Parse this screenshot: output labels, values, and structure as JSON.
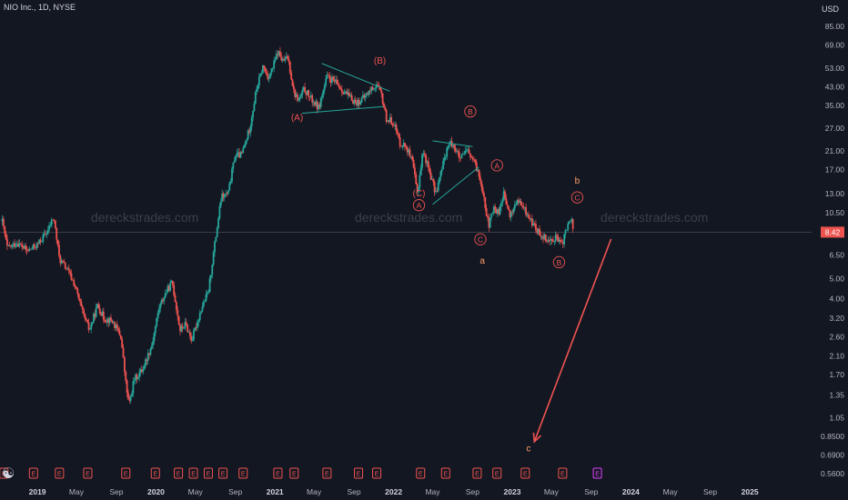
{
  "header": {
    "title": "NIO Inc., 1D, NYSE",
    "unit": "USD"
  },
  "watermark": "dereckstrades.com",
  "price_badge": "8.42",
  "colors": {
    "bg": "#131722",
    "up": "#26a69a",
    "down": "#ef5350",
    "grid": "#2a2e39",
    "axis_text": "#b2b5be",
    "annotation_red": "#ef5350",
    "annotation_orange": "#ff9f6b",
    "trendline": "#26a69a",
    "earnings": "#ef5350",
    "dividend": "#26a69a",
    "future_event": "#e040fb"
  },
  "chart_data": {
    "type": "candlestick",
    "title": "NIO Inc., 1D, NYSE",
    "scale": "log",
    "y_ticks": [
      "85.00",
      "69.00",
      "53.00",
      "43.00",
      "35.00",
      "27.00",
      "21.00",
      "17.00",
      "13.00",
      "10.50",
      "6.50",
      "5.00",
      "4.00",
      "3.20",
      "2.60",
      "2.10",
      "1.70",
      "1.35",
      "1.05",
      "0.8500",
      "0.6900",
      "0.5600"
    ],
    "x_ticks": [
      "2019",
      "May",
      "Sep",
      "2020",
      "May",
      "Sep",
      "2021",
      "May",
      "Sep",
      "2022",
      "May",
      "Sep",
      "2023",
      "May",
      "Sep",
      "2024",
      "May",
      "Sep",
      "2025"
    ],
    "last_price": 8.42,
    "price_path": [
      {
        "date": "2018-09-15",
        "price": 9.5
      },
      {
        "date": "2018-10-01",
        "price": 7.0
      },
      {
        "date": "2018-11-01",
        "price": 7.5
      },
      {
        "date": "2018-12-01",
        "price": 6.8
      },
      {
        "date": "2019-01-01",
        "price": 7.3
      },
      {
        "date": "2019-02-01",
        "price": 8.5
      },
      {
        "date": "2019-02-20",
        "price": 10.0
      },
      {
        "date": "2019-03-10",
        "price": 6.2
      },
      {
        "date": "2019-04-01",
        "price": 5.6
      },
      {
        "date": "2019-04-25",
        "price": 4.7
      },
      {
        "date": "2019-05-20",
        "price": 3.4
      },
      {
        "date": "2019-06-10",
        "price": 2.8
      },
      {
        "date": "2019-07-05",
        "price": 3.7
      },
      {
        "date": "2019-07-25",
        "price": 3.2
      },
      {
        "date": "2019-08-20",
        "price": 3.1
      },
      {
        "date": "2019-09-15",
        "price": 2.6
      },
      {
        "date": "2019-10-01",
        "price": 1.5
      },
      {
        "date": "2019-10-10",
        "price": 1.2
      },
      {
        "date": "2019-10-25",
        "price": 1.6
      },
      {
        "date": "2019-11-20",
        "price": 1.8
      },
      {
        "date": "2019-12-20",
        "price": 2.4
      },
      {
        "date": "2020-01-10",
        "price": 3.6
      },
      {
        "date": "2020-02-01",
        "price": 4.3
      },
      {
        "date": "2020-02-20",
        "price": 4.8
      },
      {
        "date": "2020-03-15",
        "price": 2.8
      },
      {
        "date": "2020-04-01",
        "price": 3.0
      },
      {
        "date": "2020-04-20",
        "price": 2.5
      },
      {
        "date": "2020-05-20",
        "price": 3.6
      },
      {
        "date": "2020-06-10",
        "price": 4.3
      },
      {
        "date": "2020-06-25",
        "price": 6.5
      },
      {
        "date": "2020-07-20",
        "price": 12.5
      },
      {
        "date": "2020-08-10",
        "price": 13.0
      },
      {
        "date": "2020-08-31",
        "price": 20.0
      },
      {
        "date": "2020-09-20",
        "price": 20.0
      },
      {
        "date": "2020-10-15",
        "price": 27.0
      },
      {
        "date": "2020-11-05",
        "price": 42.0
      },
      {
        "date": "2020-11-25",
        "price": 54.0
      },
      {
        "date": "2020-12-10",
        "price": 48.0
      },
      {
        "date": "2020-12-25",
        "price": 53.0
      },
      {
        "date": "2021-01-10",
        "price": 64.0
      },
      {
        "date": "2021-01-25",
        "price": 57.0
      },
      {
        "date": "2021-02-10",
        "price": 60.0
      },
      {
        "date": "2021-03-01",
        "price": 40.0
      },
      {
        "date": "2021-03-15",
        "price": 37.0
      },
      {
        "date": "2021-04-01",
        "price": 42.0
      },
      {
        "date": "2021-04-20",
        "price": 38.0
      },
      {
        "date": "2021-05-15",
        "price": 34.0
      },
      {
        "date": "2021-06-10",
        "price": 48.0
      },
      {
        "date": "2021-07-01",
        "price": 46.0
      },
      {
        "date": "2021-07-25",
        "price": 42.0
      },
      {
        "date": "2021-08-20",
        "price": 38.0
      },
      {
        "date": "2021-09-10",
        "price": 36.0
      },
      {
        "date": "2021-10-01",
        "price": 38.0
      },
      {
        "date": "2021-10-25",
        "price": 42.0
      },
      {
        "date": "2021-11-10",
        "price": 44.0
      },
      {
        "date": "2021-11-25",
        "price": 39.0
      },
      {
        "date": "2021-12-10",
        "price": 30.0
      },
      {
        "date": "2022-01-01",
        "price": 29.0
      },
      {
        "date": "2022-01-20",
        "price": 23.0
      },
      {
        "date": "2022-02-10",
        "price": 22.0
      },
      {
        "date": "2022-03-01",
        "price": 18.0
      },
      {
        "date": "2022-03-15",
        "price": 13.0
      },
      {
        "date": "2022-04-01",
        "price": 21.0
      },
      {
        "date": "2022-04-20",
        "price": 17.0
      },
      {
        "date": "2022-05-10",
        "price": 13.0
      },
      {
        "date": "2022-05-25",
        "price": 16.0
      },
      {
        "date": "2022-06-15",
        "price": 22.0
      },
      {
        "date": "2022-07-01",
        "price": 23.0
      },
      {
        "date": "2022-07-25",
        "price": 19.0
      },
      {
        "date": "2022-08-15",
        "price": 21.0
      },
      {
        "date": "2022-09-01",
        "price": 19.0
      },
      {
        "date": "2022-09-15",
        "price": 17.0
      },
      {
        "date": "2022-10-01",
        "price": 14.0
      },
      {
        "date": "2022-10-20",
        "price": 9.0
      },
      {
        "date": "2022-11-05",
        "price": 11.0
      },
      {
        "date": "2022-11-20",
        "price": 10.5
      },
      {
        "date": "2022-12-05",
        "price": 13.0
      },
      {
        "date": "2022-12-25",
        "price": 10.0
      },
      {
        "date": "2023-01-15",
        "price": 12.0
      },
      {
        "date": "2023-02-05",
        "price": 11.0
      },
      {
        "date": "2023-03-01",
        "price": 9.5
      },
      {
        "date": "2023-03-20",
        "price": 8.5
      },
      {
        "date": "2023-04-10",
        "price": 8.0
      },
      {
        "date": "2023-04-25",
        "price": 7.6
      },
      {
        "date": "2023-05-15",
        "price": 8.0
      },
      {
        "date": "2023-06-01",
        "price": 7.2
      },
      {
        "date": "2023-06-15",
        "price": 8.5
      },
      {
        "date": "2023-06-30",
        "price": 9.9
      },
      {
        "date": "2023-07-10",
        "price": 8.42
      }
    ],
    "elliott_labels": [
      {
        "text": "(A)",
        "date": "2021-03-10",
        "price": 29.5,
        "color": "red"
      },
      {
        "text": "(B)",
        "date": "2021-11-20",
        "price": 56,
        "color": "red"
      },
      {
        "text": "(C)",
        "date": "2022-03-20",
        "price": 12.6,
        "color": "red"
      },
      {
        "text": "A",
        "date": "2022-03-20",
        "price": 11.0,
        "color": "red",
        "circled": true
      },
      {
        "text": "B",
        "date": "2022-08-25",
        "price": 31.5,
        "color": "red",
        "circled": true
      },
      {
        "text": "A",
        "date": "2022-11-15",
        "price": 17.2,
        "color": "red",
        "circled": true
      },
      {
        "text": "C",
        "date": "2022-09-25",
        "price": 7.5,
        "color": "red",
        "circled": true
      },
      {
        "text": "a",
        "date": "2022-10-01",
        "price": 5.9,
        "color": "orange"
      },
      {
        "text": "b",
        "date": "2023-07-20",
        "price": 14.5,
        "color": "orange"
      },
      {
        "text": "C",
        "date": "2023-07-20",
        "price": 12.0,
        "color": "red",
        "circled": true
      },
      {
        "text": "B",
        "date": "2023-05-25",
        "price": 5.8,
        "color": "red",
        "circled": true
      },
      {
        "text": "c",
        "date": "2023-02-20",
        "price": 0.72,
        "color": "orange"
      }
    ],
    "trendlines": [
      {
        "from": {
          "date": "2021-03-25",
          "price": 32.0
        },
        "to": {
          "date": "2021-12-01",
          "price": 34.5
        }
      },
      {
        "from": {
          "date": "2021-05-25",
          "price": 56.0
        },
        "to": {
          "date": "2021-12-20",
          "price": 41.0
        }
      },
      {
        "from": {
          "date": "2022-05-01",
          "price": 23.5
        },
        "to": {
          "date": "2022-09-01",
          "price": 22.0
        }
      },
      {
        "from": {
          "date": "2022-05-01",
          "price": 11.5
        },
        "to": {
          "date": "2022-09-20",
          "price": 17.5
        }
      }
    ],
    "projection_arrow": {
      "from": {
        "date": "2023-11-01",
        "price": 7.8
      },
      "to": {
        "date": "2023-03-10",
        "price": 0.8
      }
    },
    "events": [
      {
        "date": "2018-09-20",
        "type": "E"
      },
      {
        "date": "2018-12-20",
        "type": "E"
      },
      {
        "date": "2019-03-10",
        "type": "E"
      },
      {
        "date": "2019-06-05",
        "type": "E"
      },
      {
        "date": "2019-09-30",
        "type": "E"
      },
      {
        "date": "2019-12-30",
        "type": "E"
      },
      {
        "date": "2020-03-10",
        "type": "E"
      },
      {
        "date": "2020-04-25",
        "type": "E"
      },
      {
        "date": "2020-06-10",
        "type": "E"
      },
      {
        "date": "2020-07-25",
        "type": "E"
      },
      {
        "date": "2020-09-25",
        "type": "E"
      },
      {
        "date": "2021-01-10",
        "type": "E"
      },
      {
        "date": "2021-03-01",
        "type": "E"
      },
      {
        "date": "2021-06-10",
        "type": "E"
      },
      {
        "date": "2021-09-15",
        "type": "E"
      },
      {
        "date": "2021-11-10",
        "type": "E"
      },
      {
        "date": "2022-03-25",
        "type": "E"
      },
      {
        "date": "2022-06-10",
        "type": "E"
      },
      {
        "date": "2022-09-15",
        "type": "E"
      },
      {
        "date": "2022-11-15",
        "type": "E"
      },
      {
        "date": "2023-02-10",
        "type": "E"
      },
      {
        "date": "2023-06-05",
        "type": "E"
      },
      {
        "date": "2023-09-20",
        "type": "E",
        "future": true
      }
    ],
    "range": {
      "x_start": "2018-09-08",
      "x_end": "2025-07-10",
      "y_min": 0.5,
      "y_max": 95
    }
  }
}
